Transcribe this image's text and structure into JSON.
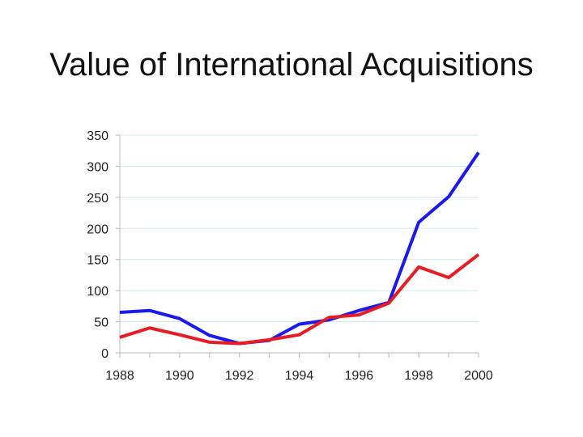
{
  "title": "Value of International Acquisitions",
  "chart_data": {
    "type": "line",
    "title": "Value of International Acquisitions",
    "xlabel": "",
    "ylabel": "",
    "x": [
      1988,
      1989,
      1990,
      1991,
      1992,
      1993,
      1994,
      1995,
      1996,
      1997,
      1998,
      1999,
      2000
    ],
    "x_tick_labels": [
      "1988",
      "1990",
      "1992",
      "1994",
      "1996",
      "1998",
      "2000"
    ],
    "y_tick_labels": [
      "0",
      "50",
      "100",
      "150",
      "200",
      "250",
      "300",
      "350"
    ],
    "xlim": [
      1988,
      2000
    ],
    "ylim": [
      0,
      350
    ],
    "grid": true,
    "series": [
      {
        "values": [
          65,
          68,
          55,
          28,
          15,
          20,
          46,
          53,
          68,
          81,
          210,
          251,
          322
        ],
        "color": "#1a1aee"
      },
      {
        "values": [
          25,
          40,
          29,
          17,
          15,
          21,
          29,
          57,
          61,
          80,
          138,
          121,
          158
        ],
        "color": "#e81c24"
      }
    ]
  }
}
